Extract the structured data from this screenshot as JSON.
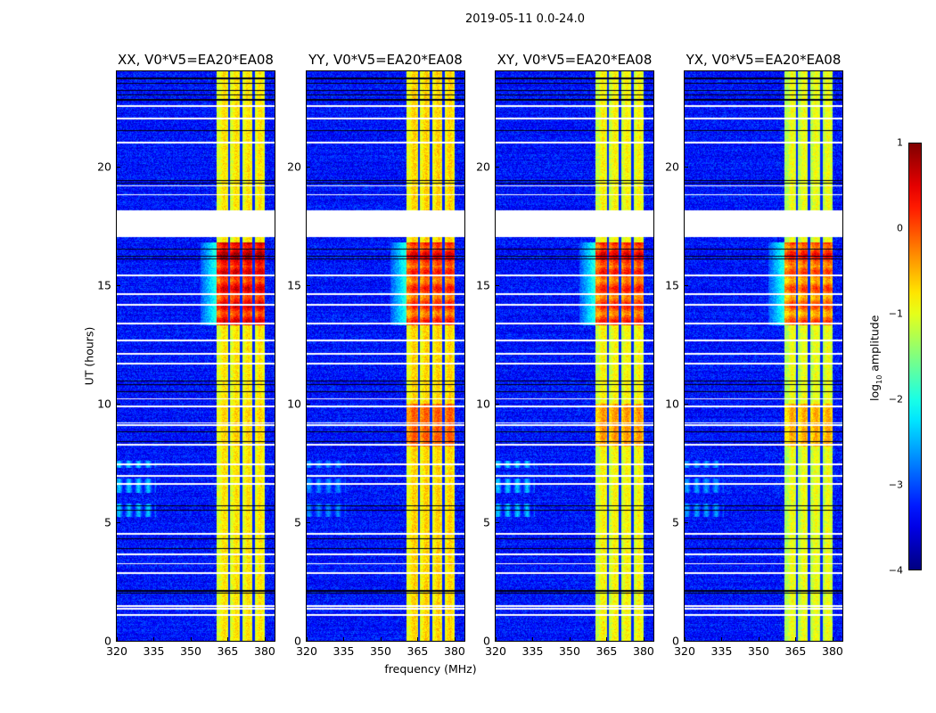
{
  "chart_data": {
    "type": "heatmap",
    "title": "2019-05-11 0.0-24.0",
    "xlabel": "frequency (MHz)",
    "ylabel": "UT (hours)",
    "xlim": [
      320,
      384
    ],
    "ylim": [
      0,
      24
    ],
    "xticks": [
      "320",
      "335",
      "350",
      "365",
      "380"
    ],
    "xtick_values": [
      320,
      335,
      350,
      365,
      380
    ],
    "yticks": [
      "0",
      "5",
      "10",
      "15",
      "20"
    ],
    "ytick_values": [
      0,
      5,
      10,
      15,
      20
    ],
    "colorbar": {
      "label_main": "log",
      "label_sub": "10",
      "label_tail": " amplitude",
      "range": [
        -4,
        1
      ],
      "ticks": [
        "1",
        "0",
        "−1",
        "−2",
        "−3",
        "−4"
      ],
      "tick_values": [
        1,
        0,
        -1,
        -2,
        -3,
        -4
      ],
      "colormap": "jet"
    },
    "background_level": -3.3,
    "flagged_gap_hours": [
      17.0,
      18.15
    ],
    "flagged_white_hours": [
      22.55,
      22.0,
      21.0,
      19.17,
      18.8,
      15.4,
      14.6,
      14.15,
      13.36,
      12.65,
      12.1,
      11.67,
      10.2,
      9.87,
      9.1,
      9.18,
      8.26,
      7.45,
      6.95,
      6.6,
      4.5,
      3.65,
      3.25,
      2.84,
      1.45,
      1.35,
      1.1
    ],
    "dropout_black_hours": [
      23.7,
      23.5,
      23.2,
      23.0,
      22.8,
      21.5,
      19.4,
      19.3,
      16.5,
      16.2,
      16.1,
      10.96,
      10.8,
      10.5,
      8.8,
      8.4,
      5.7,
      5.5,
      4.3,
      3.9,
      2.1,
      2.0
    ],
    "rfi_band_mhz": [
      360.5,
      380
    ],
    "rfi_notch_mhz": [
      365.5,
      370.5,
      375.5
    ],
    "panels": [
      {
        "title": "XX, V0*V5=EA20*EA08",
        "band_level": -0.9,
        "burst_hours": [
          13.3,
          16.8
        ],
        "burst_level": 0.2,
        "mid_hours": [
          8.2,
          10.0
        ],
        "mid_level": -0.8,
        "low_freq_blob_level": -2.4
      },
      {
        "title": "YY, V0*V5=EA20*EA08",
        "band_level": -0.8,
        "burst_hours": [
          13.3,
          16.8
        ],
        "burst_level": -0.1,
        "mid_hours": [
          8.2,
          10.0
        ],
        "mid_level": -0.2,
        "low_freq_blob_level": -2.7
      },
      {
        "title": "XY, V0*V5=EA20*EA08",
        "band_level": -1.0,
        "burst_hours": [
          13.3,
          16.8
        ],
        "burst_level": -0.1,
        "mid_hours": [
          8.2,
          10.0
        ],
        "mid_level": -0.5,
        "low_freq_blob_level": -2.4
      },
      {
        "title": "YX, V0*V5=EA20*EA08",
        "band_level": -1.1,
        "burst_hours": [
          13.3,
          16.8
        ],
        "burst_level": -0.3,
        "mid_hours": [
          8.2,
          10.0
        ],
        "mid_level": -0.6,
        "low_freq_blob_level": -2.6
      }
    ]
  }
}
